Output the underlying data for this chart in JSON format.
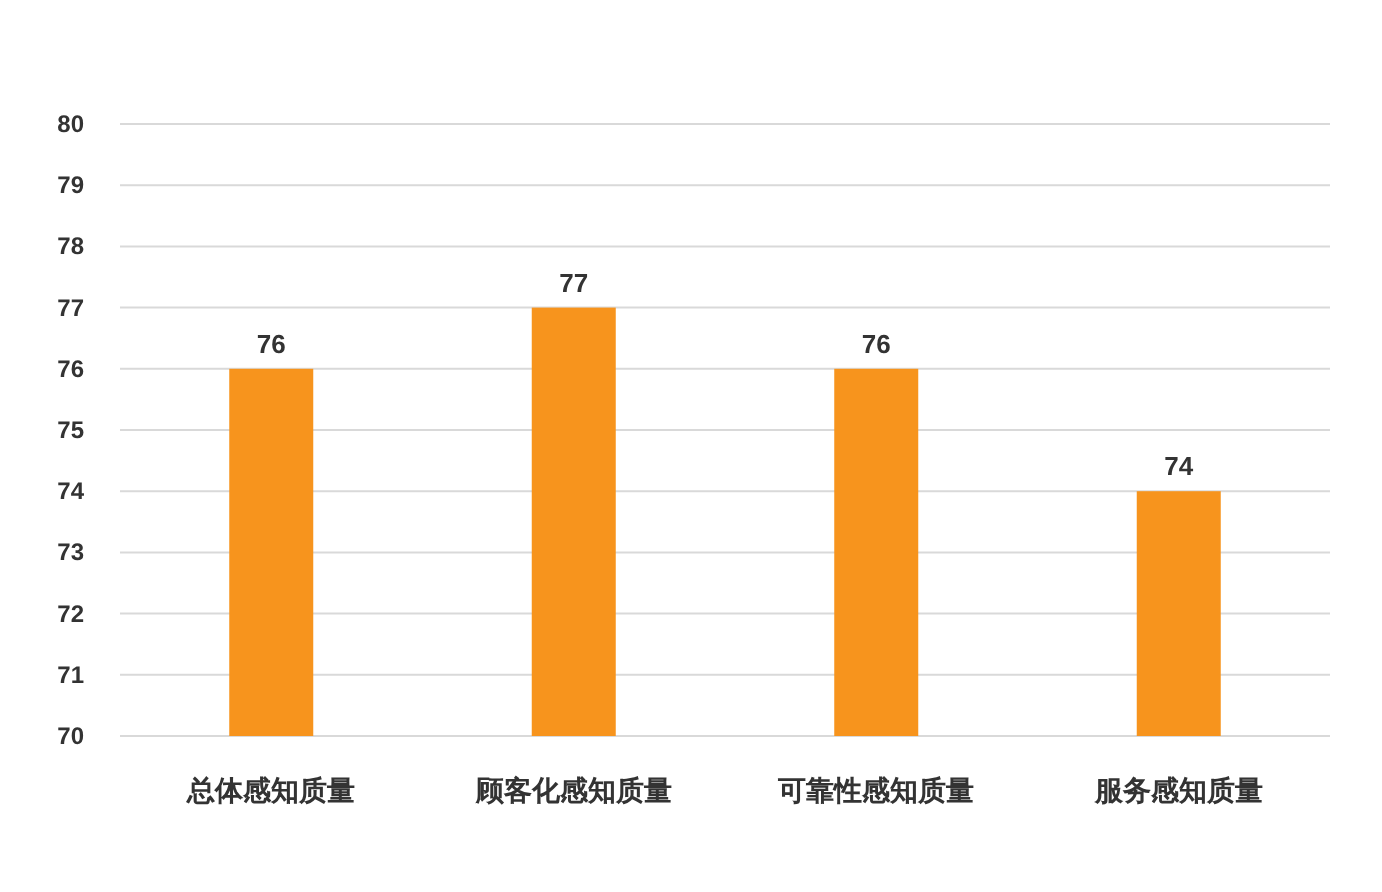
{
  "chart_data": {
    "type": "bar",
    "categories": [
      "总体感知质量",
      "顾客化感知质量",
      "可靠性感知质量",
      "服务感知质量"
    ],
    "values": [
      76,
      77,
      76,
      74
    ],
    "color": "#f7941d",
    "ylim": [
      70,
      80
    ],
    "yticks": [
      70,
      71,
      72,
      73,
      74,
      75,
      76,
      77,
      78,
      79,
      80
    ],
    "grid": "y",
    "data_labels": true
  }
}
